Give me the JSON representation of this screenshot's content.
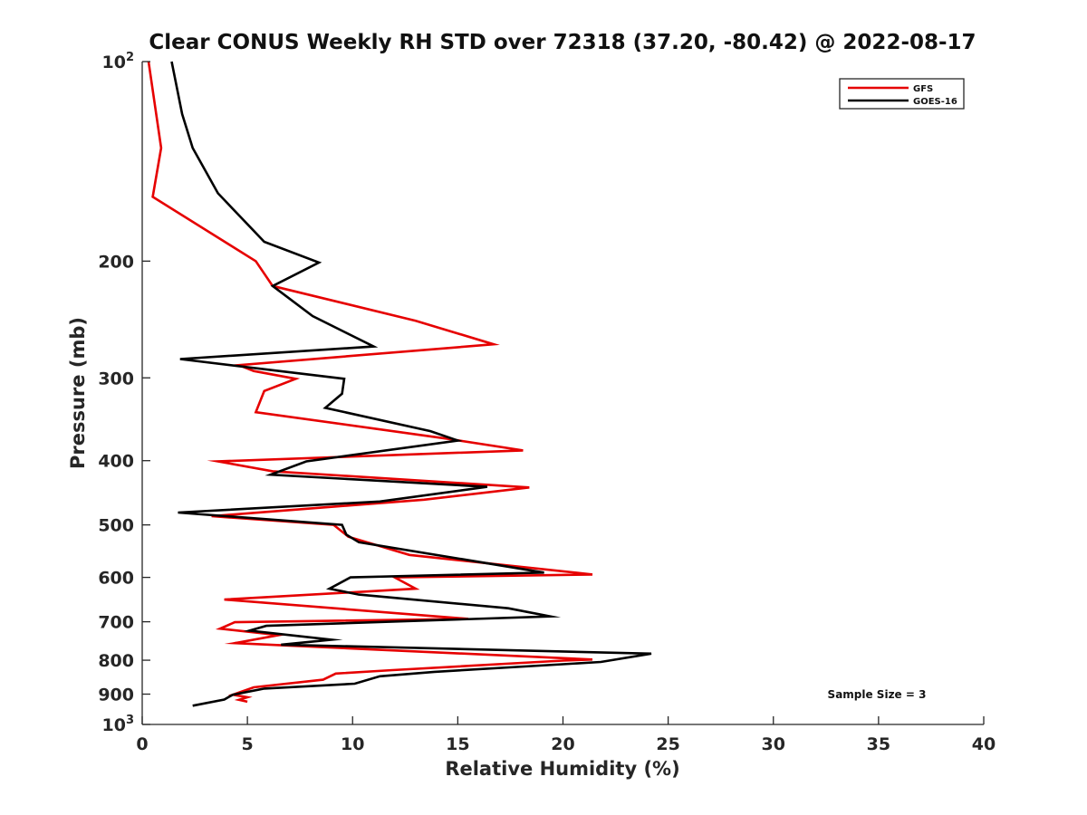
{
  "chart_data": {
    "type": "line",
    "title": "Clear CONUS Weekly RH STD over 72318 (37.20, -80.42) @ 2022-08-17",
    "xlabel": "Relative Humidity (%)",
    "ylabel": "Pressure (mb)",
    "xlim": [
      0,
      40
    ],
    "ylim": [
      100,
      1000
    ],
    "y_scale": "log",
    "y_reversed": true,
    "grid": false,
    "legend_position": "top-right",
    "x_ticks": [
      "0",
      "5",
      "10",
      "15",
      "20",
      "25",
      "30",
      "35",
      "40"
    ],
    "y_ticks": [
      {
        "value": 100,
        "label": "10",
        "sup": "2"
      },
      {
        "value": 200,
        "label": "200"
      },
      {
        "value": 300,
        "label": "300"
      },
      {
        "value": 400,
        "label": "400"
      },
      {
        "value": 500,
        "label": "500"
      },
      {
        "value": 600,
        "label": "600"
      },
      {
        "value": 700,
        "label": "700"
      },
      {
        "value": 800,
        "label": "800"
      },
      {
        "value": 900,
        "label": "900"
      },
      {
        "value": 1000,
        "label": "10",
        "sup": "3"
      }
    ],
    "series": [
      {
        "name": "GFS",
        "color": "#e60000",
        "points": [
          [
            0.3,
            100
          ],
          [
            0.9,
            135
          ],
          [
            0.5,
            160
          ],
          [
            5.4,
            200
          ],
          [
            6.2,
            218
          ],
          [
            13.0,
            246
          ],
          [
            16.7,
            267
          ],
          [
            4.6,
            287
          ],
          [
            5.3,
            293
          ],
          [
            7.3,
            301
          ],
          [
            5.8,
            314
          ],
          [
            5.4,
            338
          ],
          [
            14.6,
            371
          ],
          [
            18.1,
            386
          ],
          [
            3.6,
            401
          ],
          [
            6.2,
            415
          ],
          [
            18.4,
            439
          ],
          [
            13.4,
            458
          ],
          [
            3.3,
            485
          ],
          [
            9.1,
            500
          ],
          [
            9.8,
            521
          ],
          [
            12.7,
            555
          ],
          [
            21.4,
            594
          ],
          [
            12.0,
            600
          ],
          [
            13.0,
            624
          ],
          [
            3.9,
            648
          ],
          [
            15.5,
            693
          ],
          [
            4.4,
            701
          ],
          [
            3.7,
            717
          ],
          [
            6.5,
            733
          ],
          [
            4.4,
            754
          ],
          [
            21.4,
            798
          ],
          [
            20.0,
            801
          ],
          [
            11.9,
            828
          ],
          [
            9.2,
            838
          ],
          [
            8.6,
            856
          ],
          [
            5.3,
            879
          ],
          [
            4.3,
            902
          ],
          [
            5.0,
            910
          ],
          [
            4.6,
            918
          ],
          [
            5.0,
            924
          ]
        ]
      },
      {
        "name": "GOES-16",
        "color": "#000000",
        "points": [
          [
            1.4,
            100
          ],
          [
            1.9,
            120
          ],
          [
            2.4,
            135
          ],
          [
            3.6,
            158
          ],
          [
            5.8,
            187
          ],
          [
            8.4,
            201
          ],
          [
            6.2,
            218
          ],
          [
            8.1,
            242
          ],
          [
            11.0,
            269
          ],
          [
            1.8,
            281
          ],
          [
            9.6,
            301
          ],
          [
            9.5,
            317
          ],
          [
            8.7,
            333
          ],
          [
            13.7,
            361
          ],
          [
            15.0,
            373
          ],
          [
            7.8,
            401
          ],
          [
            6.1,
            420
          ],
          [
            16.4,
            438
          ],
          [
            11.3,
            461
          ],
          [
            1.7,
            479
          ],
          [
            9.5,
            500
          ],
          [
            9.7,
            517
          ],
          [
            10.3,
            531
          ],
          [
            19.1,
            590
          ],
          [
            9.9,
            600
          ],
          [
            8.9,
            624
          ],
          [
            10.3,
            637
          ],
          [
            17.4,
            668
          ],
          [
            19.4,
            687
          ],
          [
            5.9,
            710
          ],
          [
            5.1,
            722
          ],
          [
            9.0,
            745
          ],
          [
            6.6,
            758
          ],
          [
            24.2,
            782
          ],
          [
            21.8,
            805
          ],
          [
            13.9,
            833
          ],
          [
            11.3,
            846
          ],
          [
            10.1,
            868
          ],
          [
            5.8,
            883
          ],
          [
            4.3,
            902
          ],
          [
            3.9,
            917
          ],
          [
            2.4,
            937
          ]
        ]
      }
    ],
    "annotations": [
      "Sample Size = 3"
    ]
  }
}
